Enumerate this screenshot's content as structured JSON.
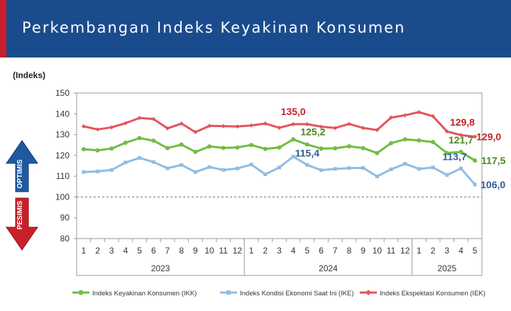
{
  "banner": {
    "title": "Perkembangan Indeks Keyakinan Konsumen"
  },
  "colors": {
    "banner": "#1a4c8d",
    "accent": "#c8202a",
    "ikk": "#6fbe44",
    "ike": "#8fbde3",
    "iek": "#e3555b",
    "optimis": "#1f5aa0",
    "pesimis": "#c8202a"
  },
  "arrows": {
    "optimis": "OPTIMIS",
    "pesimis": "PESIMIS"
  },
  "chart_data": {
    "type": "line",
    "unit_label": "(Indeks)",
    "ylim": [
      80,
      150
    ],
    "yticks": [
      80,
      90,
      100,
      110,
      120,
      130,
      140,
      150
    ],
    "reference_line": 100,
    "months": [
      "1",
      "2",
      "3",
      "4",
      "5",
      "6",
      "7",
      "8",
      "9",
      "10",
      "11",
      "12",
      "1",
      "2",
      "3",
      "4",
      "5",
      "6",
      "7",
      "8",
      "9",
      "10",
      "11",
      "12",
      "1",
      "2",
      "3",
      "4",
      "5"
    ],
    "years": [
      {
        "label": "2023",
        "start": 0,
        "end": 11
      },
      {
        "label": "2024",
        "start": 12,
        "end": 23
      },
      {
        "label": "2025",
        "start": 24,
        "end": 28
      }
    ],
    "series": [
      {
        "key": "iek",
        "name": "Indeks Ekspektasi Konsumen (IEK)",
        "color": "#e3555b",
        "values": [
          134.0,
          132.5,
          133.5,
          135.5,
          138.0,
          137.5,
          133.0,
          135.3,
          131.2,
          134.2,
          134.1,
          133.9,
          134.4,
          135.3,
          133.3,
          135.0,
          135.0,
          133.8,
          133.2,
          135.1,
          133.2,
          132.2,
          138.2,
          139.3,
          140.8,
          138.8,
          131.5,
          129.8,
          129.0
        ]
      },
      {
        "key": "ikk",
        "name": "Indeks Keyakinan Konsumen (IKK)",
        "color": "#6fbe44",
        "values": [
          123.0,
          122.4,
          123.3,
          126.1,
          128.3,
          127.1,
          123.5,
          125.2,
          121.7,
          124.3,
          123.6,
          123.8,
          125.0,
          123.1,
          123.8,
          127.7,
          125.2,
          123.3,
          123.4,
          124.4,
          123.5,
          121.1,
          125.9,
          127.7,
          127.2,
          126.4,
          121.1,
          121.7,
          117.5
        ]
      },
      {
        "key": "ike",
        "name": "Indeks Kondisi Ekonomi Saat Ini (IKE)",
        "color": "#8fbde3",
        "values": [
          112.0,
          112.3,
          113.0,
          116.6,
          118.8,
          116.8,
          113.8,
          115.4,
          112.0,
          114.4,
          113.0,
          113.7,
          115.6,
          110.9,
          114.2,
          119.4,
          115.4,
          112.9,
          113.5,
          113.9,
          114.0,
          109.9,
          113.3,
          116.0,
          113.5,
          114.2,
          110.6,
          113.7,
          106.0
        ]
      }
    ],
    "annotations": [
      {
        "text": "135,0",
        "series": "iek",
        "index": 15
      },
      {
        "text": "129,8",
        "series": "iek",
        "index": 27
      },
      {
        "text": "129,0",
        "series": "iek",
        "index": 28
      },
      {
        "text": "125,2",
        "series": "ikk",
        "index": 16
      },
      {
        "text": "121,7",
        "series": "ikk",
        "index": 27
      },
      {
        "text": "117,5",
        "series": "ikk",
        "index": 28
      },
      {
        "text": "115,4",
        "series": "ike",
        "index": 16
      },
      {
        "text": "113,7",
        "series": "ike",
        "index": 27
      },
      {
        "text": "106,0",
        "series": "ike",
        "index": 28
      }
    ],
    "legend": [
      {
        "key": "ikk",
        "label": "Indeks Keyakinan Konsumen (IKK)"
      },
      {
        "key": "ike",
        "label": "Indeks Kondisi Ekonomi Saat Ini (IKE)"
      },
      {
        "key": "iek",
        "label": "Indeks Ekspektasi Konsumen (IEK)"
      }
    ]
  }
}
